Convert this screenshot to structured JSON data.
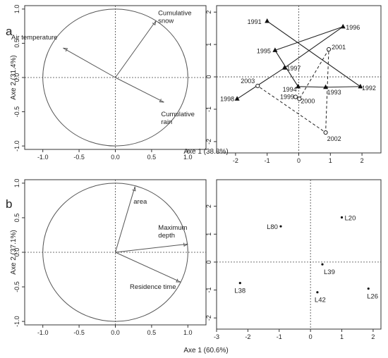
{
  "chart_data": [
    {
      "panel": "a",
      "kind": "correlation-circle",
      "type": "scatter",
      "xlabel": "Axe 1 (38.8%)",
      "ylabel": "Axe 2 (31.4%)",
      "xlim": [
        -1.25,
        1.25
      ],
      "ylim": [
        -1.05,
        1.05
      ],
      "xticks": [
        "-1.0",
        "-0.5",
        "0.0",
        "0.5",
        "1.0"
      ],
      "yticks": [
        "-1.0",
        "-0.5",
        "0.0",
        "0.5",
        "1.0"
      ],
      "vectors": [
        {
          "name": "Air temperature",
          "x": -0.72,
          "y": 0.43
        },
        {
          "name": "Cumulative snow",
          "x": 0.56,
          "y": 0.83
        },
        {
          "name": "Cumulative rain",
          "x": 0.67,
          "y": -0.36
        }
      ]
    },
    {
      "panel": "a",
      "kind": "year-scores",
      "type": "scatter",
      "xlim": [
        -2.6,
        2.6
      ],
      "ylim": [
        -2.35,
        2.2
      ],
      "xticks": [
        "-2",
        "-1",
        "0",
        "1",
        "2"
      ],
      "yticks": [
        "-2",
        "-1",
        "0",
        "1",
        "2"
      ],
      "points": [
        {
          "label": "1991",
          "x": -1.0,
          "y": 1.72,
          "marker": "triangle"
        },
        {
          "label": "1992",
          "x": 1.95,
          "y": -0.3,
          "marker": "triangle"
        },
        {
          "label": "1993",
          "x": 0.85,
          "y": -0.32,
          "marker": "triangle"
        },
        {
          "label": "1994",
          "x": -0.02,
          "y": -0.3,
          "marker": "triangle"
        },
        {
          "label": "1995",
          "x": -0.75,
          "y": 0.82,
          "marker": "triangle"
        },
        {
          "label": "1996",
          "x": 1.4,
          "y": 1.55,
          "marker": "triangle"
        },
        {
          "label": "1997",
          "x": -0.45,
          "y": 0.28,
          "marker": "triangle"
        },
        {
          "label": "1998",
          "x": -1.95,
          "y": -0.68,
          "marker": "triangle"
        },
        {
          "label": "1999",
          "x": -0.1,
          "y": -0.62,
          "marker": "circle"
        },
        {
          "label": "2000",
          "x": 0.02,
          "y": -0.68,
          "marker": "circle"
        },
        {
          "label": "2001",
          "x": 0.95,
          "y": 0.85,
          "marker": "circle"
        },
        {
          "label": "2002",
          "x": 0.85,
          "y": -1.72,
          "marker": "circle"
        },
        {
          "label": "2003",
          "x": -1.3,
          "y": -0.28,
          "marker": "circle"
        }
      ],
      "solid_path": [
        "1991",
        "1992",
        "1993",
        "1994",
        "1995",
        "1996",
        "1997",
        "1998"
      ],
      "dashed_path": [
        "1999",
        "2000",
        "2001",
        "2002",
        "2003"
      ]
    },
    {
      "panel": "b",
      "kind": "correlation-circle",
      "type": "scatter",
      "xlabel": "Axe 1 (60.6%)",
      "ylabel": "Axe 2 (37.1%)",
      "xlim": [
        -1.25,
        1.25
      ],
      "ylim": [
        -1.05,
        1.05
      ],
      "xticks": [
        "-1.0",
        "-0.5",
        "0.0",
        "0.5",
        "1.0"
      ],
      "yticks": [
        "-1.0",
        "-0.5",
        "0.0",
        "0.5",
        "1.0"
      ],
      "vectors": [
        {
          "name": "area",
          "x": 0.27,
          "y": 0.95
        },
        {
          "name": "Maximum depth",
          "x": 1.0,
          "y": 0.12
        },
        {
          "name": "Residence time",
          "x": 0.9,
          "y": -0.43
        }
      ]
    },
    {
      "panel": "b",
      "kind": "lake-scores",
      "type": "scatter",
      "xlim": [
        -3.0,
        2.25
      ],
      "ylim": [
        -2.4,
        2.95
      ],
      "xticks": [
        "-3",
        "-2",
        "-1",
        "0",
        "1",
        "2"
      ],
      "yticks": [
        "-2",
        "-1",
        "0",
        "1",
        "2"
      ],
      "points": [
        {
          "label": "L20",
          "x": 1.0,
          "y": 1.6
        },
        {
          "label": "L80",
          "x": -0.95,
          "y": 1.28
        },
        {
          "label": "L39",
          "x": 0.38,
          "y": -0.08
        },
        {
          "label": "L38",
          "x": -2.25,
          "y": -0.75
        },
        {
          "label": "L42",
          "x": 0.22,
          "y": -1.08
        },
        {
          "label": "L26",
          "x": 1.85,
          "y": -0.95
        }
      ]
    }
  ],
  "panel_labels": {
    "a": "a",
    "b": "b"
  }
}
